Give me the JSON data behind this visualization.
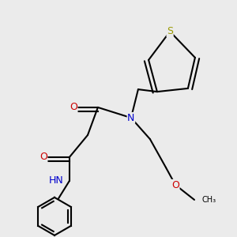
{
  "background_color": "#ebebeb",
  "bond_color": "#000000",
  "N_color": "#0000cc",
  "O_color": "#cc0000",
  "S_color": "#999900",
  "H_color": "#2f9f9f",
  "lw": 1.5,
  "atoms": {
    "S": {
      "color": "#999900"
    },
    "O": {
      "color": "#cc0000"
    },
    "N": {
      "color": "#0000cc"
    },
    "H": {
      "color": "#2f9f9f"
    },
    "C": {
      "color": "#000000"
    }
  }
}
